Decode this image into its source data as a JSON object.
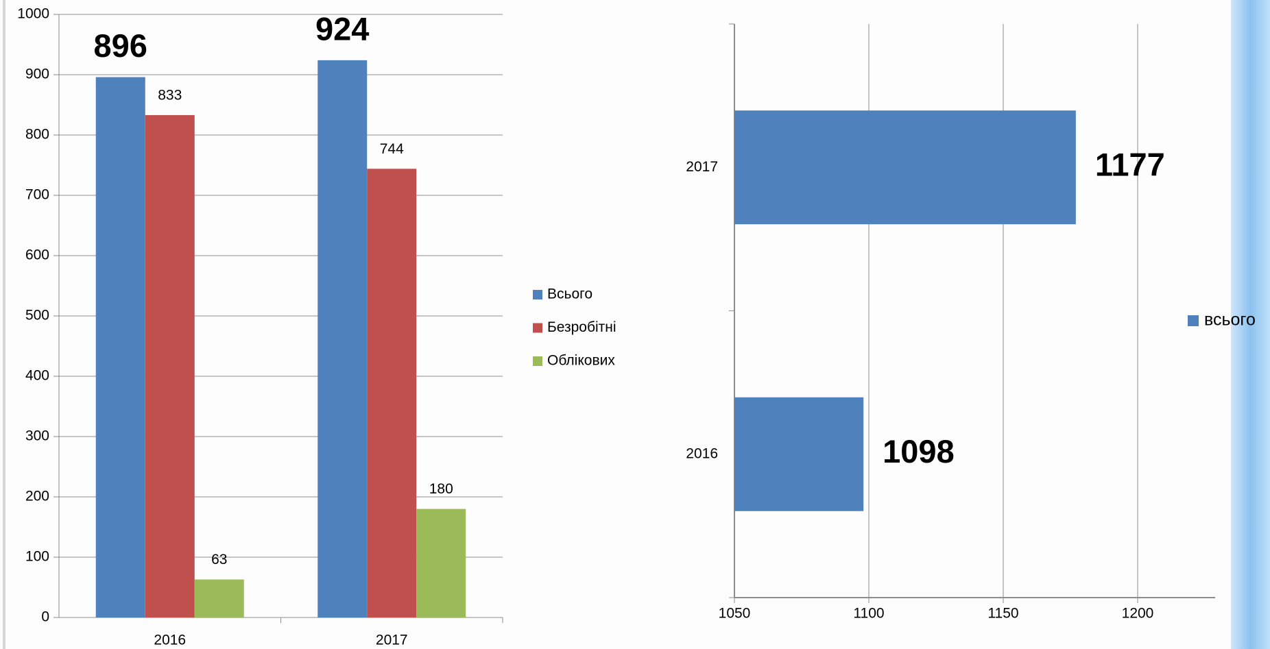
{
  "chart_data": [
    {
      "type": "bar",
      "categories": [
        "2016",
        "2017"
      ],
      "series": [
        {
          "name": "Всього",
          "color": "#4f81bd",
          "values": [
            896,
            924
          ]
        },
        {
          "name": "Безробітні",
          "color": "#c0504d",
          "values": [
            833,
            744
          ]
        },
        {
          "name": "Облікових",
          "color": "#9bbb59",
          "values": [
            63,
            180
          ]
        }
      ],
      "ylim": [
        0,
        1000
      ],
      "yticks": [
        0,
        100,
        200,
        300,
        400,
        500,
        600,
        700,
        800,
        900,
        1000
      ],
      "grid": true,
      "legend": "right"
    },
    {
      "type": "bar",
      "orientation": "horizontal",
      "categories": [
        "2016",
        "2017"
      ],
      "series": [
        {
          "name": "всього",
          "color": "#4f81bd",
          "values": [
            1098,
            1177
          ]
        }
      ],
      "xlim": [
        1050,
        1200
      ],
      "xticks": [
        1050,
        1100,
        1150,
        1200
      ],
      "grid": true,
      "legend": "right"
    }
  ]
}
